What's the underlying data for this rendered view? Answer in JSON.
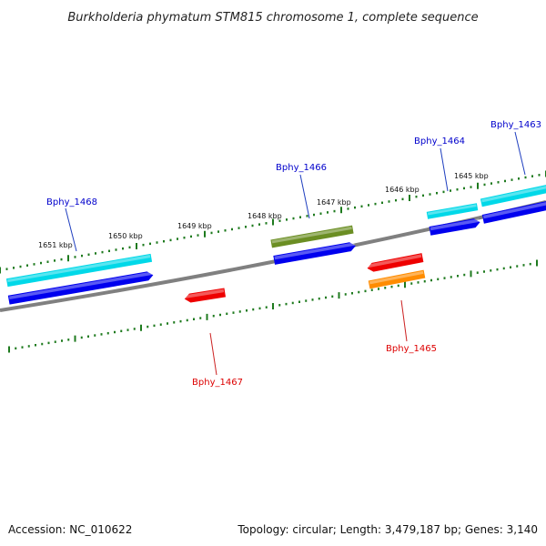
{
  "title": "Burkholderia phymatum STM815 chromosome 1, complete sequence",
  "footer": {
    "accession": "Accession: NC_010622",
    "summary": "Topology: circular; Length: 3,479,187 bp; Genes: 3,140"
  },
  "colors": {
    "backbone": "#808080",
    "tick_major": "#1e7a1e",
    "tick_minor": "#1e7a1e",
    "label_forward": "#0000cc",
    "label_reverse": "#dd0000",
    "pointer_forward": "#1f3fbf",
    "pointer_reverse": "#cc2222"
  },
  "scale_labels": [
    "1651 kbp",
    "1650 kbp",
    "1649 kbp",
    "1648 kbp",
    "1647 kbp",
    "1646 kbp",
    "1645 kbp"
  ],
  "genes": [
    {
      "id": "Bphy_1468",
      "strand": "forward",
      "color": "#00d8e8"
    },
    {
      "id": "Bphy_1466",
      "strand": "forward",
      "color": "#6b8e23"
    },
    {
      "id": "Bphy_1464",
      "strand": "forward",
      "color": "#00d8e8"
    },
    {
      "id": "Bphy_1463",
      "strand": "forward",
      "color": "#00d8e8"
    },
    {
      "id": "Bphy_1467",
      "strand": "reverse",
      "color": "#ee0000"
    },
    {
      "id": "Bphy_1465",
      "strand": "reverse",
      "color": "#ff8c00"
    }
  ],
  "cds_color": "#0000ee",
  "reverse_cds_color": "#ee0000"
}
